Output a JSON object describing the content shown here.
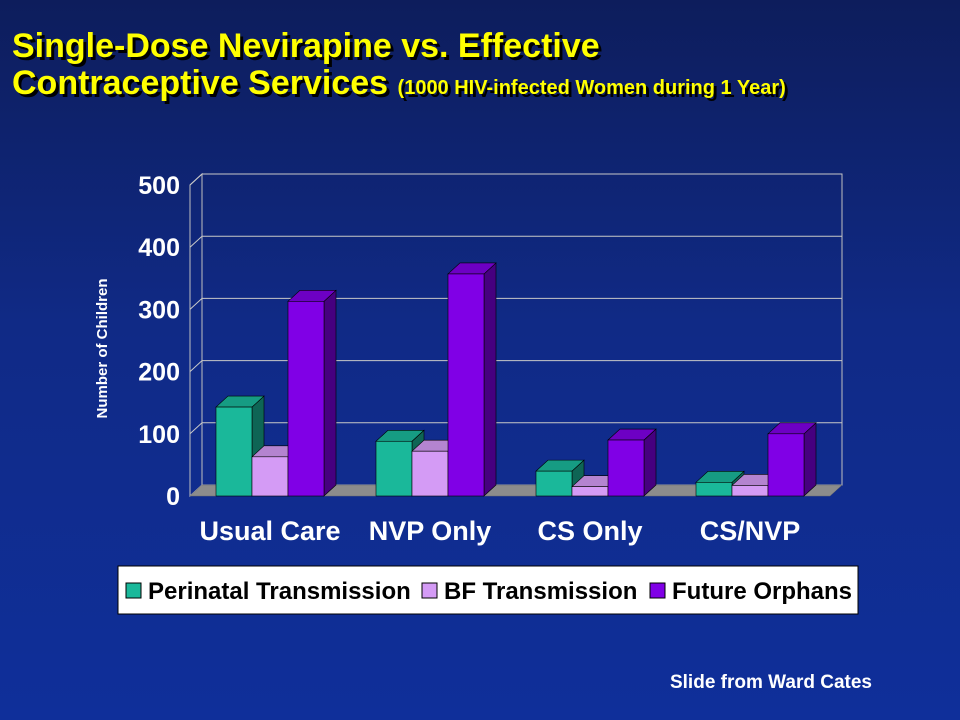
{
  "title": {
    "line1": "Single-Dose Nevirapine vs. Effective",
    "line2": "Contraceptive Services",
    "subtitle": "(1000 HIV-infected Women during 1 Year)"
  },
  "footer": "Slide from Ward Cates",
  "chart_data": {
    "type": "bar",
    "style": "3d-clustered",
    "categories": [
      "Usual Care",
      "NVP Only",
      "CS Only",
      "CS/NVP"
    ],
    "series": [
      {
        "name": "Perinatal Transmission",
        "color": "#1ab89a",
        "values": [
          143,
          88,
          40,
          22
        ]
      },
      {
        "name": "BF Transmission",
        "color": "#d49bf5",
        "values": [
          63,
          72,
          15,
          17
        ]
      },
      {
        "name": "Future Orphans",
        "color": "#8000e6",
        "values": [
          313,
          357,
          90,
          100
        ]
      }
    ],
    "ylabel": "Number of Children",
    "ylim": [
      0,
      500
    ],
    "yticks": [
      0,
      100,
      200,
      300,
      400,
      500
    ],
    "grid": true,
    "legend_position": "bottom"
  }
}
